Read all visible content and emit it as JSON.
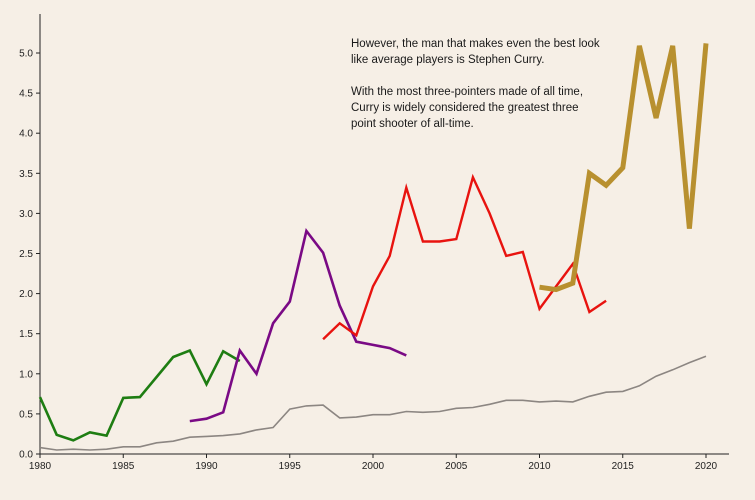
{
  "annotation": {
    "line1": "However, the man that makes even the best look like average players is Stephen Curry.",
    "line2": "With the most three-pointers made of all time, Curry is widely considered the greatest three point shooter of all-time."
  },
  "chart_data": {
    "type": "line",
    "title": "",
    "xlabel": "",
    "ylabel": "",
    "xlim": [
      1980,
      2021
    ],
    "ylim": [
      0,
      5.1
    ],
    "x_ticks": [
      1980,
      1985,
      1990,
      1995,
      2000,
      2005,
      2010,
      2015,
      2020
    ],
    "y_ticks": [
      "0.0",
      "0.5",
      "1.0",
      "1.5",
      "2.0",
      "2.5",
      "3.0",
      "3.5",
      "4.0",
      "4.5",
      "5.0"
    ],
    "grid": false,
    "series": [
      {
        "color": "#8c8682",
        "width": 1.6,
        "points": [
          [
            1980,
            0.08
          ],
          [
            1981,
            0.05
          ],
          [
            1982,
            0.06
          ],
          [
            1983,
            0.05
          ],
          [
            1984,
            0.06
          ],
          [
            1985,
            0.09
          ],
          [
            1986,
            0.09
          ],
          [
            1987,
            0.14
          ],
          [
            1988,
            0.16
          ],
          [
            1989,
            0.21
          ],
          [
            1990,
            0.22
          ],
          [
            1991,
            0.23
          ],
          [
            1992,
            0.25
          ],
          [
            1993,
            0.3
          ],
          [
            1994,
            0.33
          ],
          [
            1995,
            0.56
          ],
          [
            1996,
            0.6
          ],
          [
            1997,
            0.61
          ],
          [
            1998,
            0.45
          ],
          [
            1999,
            0.46
          ],
          [
            2000,
            0.49
          ],
          [
            2001,
            0.49
          ],
          [
            2002,
            0.53
          ],
          [
            2003,
            0.52
          ],
          [
            2004,
            0.53
          ],
          [
            2005,
            0.57
          ],
          [
            2006,
            0.58
          ],
          [
            2007,
            0.62
          ],
          [
            2008,
            0.67
          ],
          [
            2009,
            0.67
          ],
          [
            2010,
            0.65
          ],
          [
            2011,
            0.66
          ],
          [
            2012,
            0.65
          ],
          [
            2013,
            0.72
          ],
          [
            2014,
            0.77
          ],
          [
            2015,
            0.78
          ],
          [
            2016,
            0.85
          ],
          [
            2017,
            0.97
          ],
          [
            2018,
            1.05
          ],
          [
            2019,
            1.14
          ],
          [
            2020,
            1.22
          ]
        ]
      },
      {
        "color": "#1e7d12",
        "width": 2.6,
        "points": [
          [
            1980,
            0.71
          ],
          [
            1981,
            0.24
          ],
          [
            1982,
            0.17
          ],
          [
            1983,
            0.27
          ],
          [
            1984,
            0.23
          ],
          [
            1985,
            0.7
          ],
          [
            1986,
            0.71
          ],
          [
            1987,
            0.96
          ],
          [
            1988,
            1.21
          ],
          [
            1989,
            1.29
          ],
          [
            1990,
            0.87
          ],
          [
            1991,
            1.28
          ],
          [
            1992,
            1.16
          ]
        ]
      },
      {
        "color": "#7a0a85",
        "width": 2.6,
        "points": [
          [
            1989,
            0.41
          ],
          [
            1990,
            0.44
          ],
          [
            1991,
            0.52
          ],
          [
            1992,
            1.29
          ],
          [
            1993,
            1.0
          ],
          [
            1994,
            1.63
          ],
          [
            1995,
            1.9
          ],
          [
            1996,
            2.78
          ],
          [
            1997,
            2.51
          ],
          [
            1998,
            1.85
          ],
          [
            1999,
            1.4
          ],
          [
            2000,
            1.36
          ],
          [
            2001,
            1.32
          ],
          [
            2002,
            1.23
          ]
        ]
      },
      {
        "color": "#e8130f",
        "width": 2.4,
        "points": [
          [
            1997,
            1.43
          ],
          [
            1998,
            1.63
          ],
          [
            1999,
            1.48
          ],
          [
            2000,
            2.09
          ],
          [
            2001,
            2.47
          ],
          [
            2002,
            3.32
          ],
          [
            2003,
            2.65
          ],
          [
            2004,
            2.65
          ],
          [
            2005,
            2.68
          ],
          [
            2006,
            3.45
          ],
          [
            2007,
            3.0
          ],
          [
            2008,
            2.47
          ],
          [
            2009,
            2.52
          ],
          [
            2010,
            1.81
          ],
          [
            2011,
            2.09
          ],
          [
            2012,
            2.37
          ],
          [
            2013,
            1.77
          ],
          [
            2014,
            1.91
          ]
        ]
      },
      {
        "color": "#b8902f",
        "width": 5,
        "points": [
          [
            2010,
            2.08
          ],
          [
            2011,
            2.05
          ],
          [
            2012,
            2.13
          ],
          [
            2013,
            3.5
          ],
          [
            2014,
            3.35
          ],
          [
            2015,
            3.57
          ],
          [
            2016,
            5.09
          ],
          [
            2017,
            4.19
          ],
          [
            2018,
            5.09
          ],
          [
            2019,
            2.81
          ],
          [
            2020,
            5.12
          ]
        ]
      }
    ]
  }
}
